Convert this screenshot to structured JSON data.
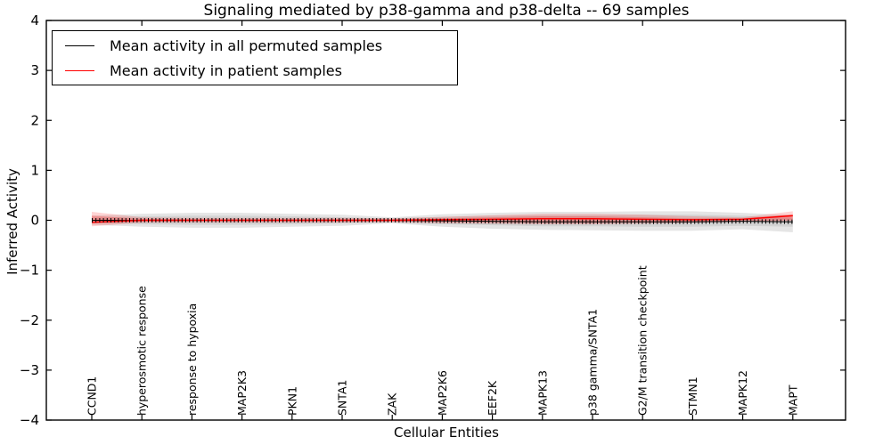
{
  "figure": {
    "background": "#ffffff"
  },
  "legend": {
    "position": "upper left",
    "entries": [
      {
        "label": "Mean activity in all permuted samples",
        "color": "#000000"
      },
      {
        "label": "Mean activity in patient samples",
        "color": "#ff0000"
      }
    ]
  },
  "chart_data": {
    "type": "line",
    "title": "Signaling mediated by p38-gamma and p38-delta -- 69 samples",
    "xlabel": "Cellular Entities",
    "ylabel": "Inferred Activity",
    "ylim": [
      -4,
      4
    ],
    "yticks": [
      4,
      3,
      2,
      1,
      0,
      -1,
      -2,
      -3,
      -4
    ],
    "grid": false,
    "legend_position": "upper left",
    "marker_note": "dense black vertical tick markers along the permuted-mean line, one per cellular entity",
    "categories": [
      "CCND1",
      "hyperosmotic response",
      "response to hypoxia",
      "MAP2K3",
      "PKN1",
      "SNTA1",
      "ZAK",
      "MAP2K6",
      "EEF2K",
      "MAPK13",
      "p38 gamma/SNTA1",
      "G2/M transition checkpoint",
      "STMN1",
      "MAPK12",
      "MAPT"
    ],
    "series": [
      {
        "name": "Mean activity in all permuted samples",
        "color": "#000000",
        "values": [
          0.0,
          0.0,
          0.0,
          0.0,
          0.0,
          0.0,
          0.0,
          -0.01,
          -0.02,
          -0.03,
          -0.03,
          -0.03,
          -0.03,
          -0.02,
          -0.03
        ]
      },
      {
        "name": "Mean activity in patient samples",
        "color": "#ff0000",
        "values": [
          -0.04,
          0.0,
          0.0,
          0.0,
          0.0,
          0.0,
          0.0,
          0.01,
          0.02,
          0.03,
          0.03,
          0.02,
          0.01,
          0.02,
          0.09
        ]
      }
    ],
    "bands": [
      {
        "name": "permuted-band-outer",
        "color": "rgba(0,0,0,0.10)",
        "upper": [
          0.09,
          0.13,
          0.15,
          0.15,
          0.13,
          0.11,
          0.06,
          0.12,
          0.15,
          0.17,
          0.17,
          0.18,
          0.18,
          0.15,
          0.1
        ],
        "lower": [
          -0.09,
          -0.13,
          -0.15,
          -0.15,
          -0.13,
          -0.11,
          -0.06,
          -0.13,
          -0.17,
          -0.19,
          -0.2,
          -0.21,
          -0.21,
          -0.18,
          -0.24
        ]
      },
      {
        "name": "permuted-band-inner",
        "color": "rgba(0,0,0,0.08)",
        "upper": [
          0.05,
          0.08,
          0.09,
          0.09,
          0.08,
          0.06,
          0.04,
          0.07,
          0.09,
          0.1,
          0.1,
          0.11,
          0.11,
          0.09,
          0.05
        ],
        "lower": [
          -0.05,
          -0.08,
          -0.09,
          -0.09,
          -0.08,
          -0.06,
          -0.04,
          -0.08,
          -0.1,
          -0.12,
          -0.12,
          -0.13,
          -0.13,
          -0.11,
          -0.13
        ]
      },
      {
        "name": "patient-band-outer",
        "color": "rgba(255,0,0,0.17)",
        "upper": [
          0.17,
          0.06,
          0.05,
          0.05,
          0.05,
          0.05,
          0.04,
          0.07,
          0.1,
          0.13,
          0.13,
          0.11,
          0.08,
          0.06,
          0.18
        ],
        "lower": [
          -0.12,
          -0.05,
          -0.05,
          -0.05,
          -0.05,
          -0.05,
          -0.04,
          -0.06,
          -0.07,
          -0.08,
          -0.08,
          -0.07,
          -0.05,
          -0.03,
          -0.01
        ]
      },
      {
        "name": "patient-band-inner",
        "color": "rgba(255,0,0,0.22)",
        "upper": [
          0.09,
          0.03,
          0.02,
          0.02,
          0.02,
          0.02,
          0.02,
          0.04,
          0.06,
          0.08,
          0.08,
          0.06,
          0.04,
          0.04,
          0.12
        ],
        "lower": [
          -0.07,
          -0.03,
          -0.02,
          -0.02,
          -0.02,
          -0.02,
          -0.02,
          -0.03,
          -0.04,
          -0.05,
          -0.05,
          -0.04,
          -0.03,
          -0.01,
          0.0
        ]
      }
    ]
  }
}
